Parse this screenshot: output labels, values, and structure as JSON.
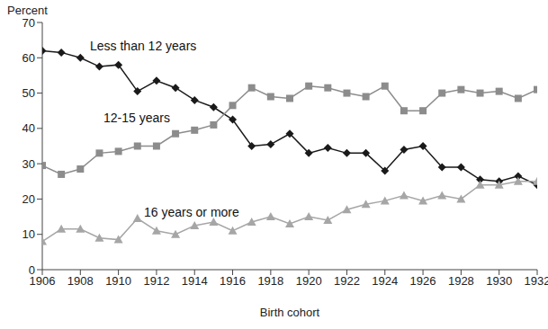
{
  "chart_data": {
    "type": "line",
    "x_label": "Birth cohort",
    "y_label": "Percent",
    "x": [
      1906,
      1907,
      1908,
      1909,
      1910,
      1911,
      1912,
      1913,
      1914,
      1915,
      1916,
      1917,
      1918,
      1919,
      1920,
      1921,
      1922,
      1923,
      1924,
      1925,
      1926,
      1927,
      1928,
      1929,
      1930,
      1931,
      1932
    ],
    "series": [
      {
        "name": "Less than 12 years",
        "color": "#1a1a1a",
        "marker": "diamond",
        "values": [
          62,
          61.5,
          60,
          57.5,
          58,
          50.5,
          53.5,
          51.5,
          48,
          46,
          42.5,
          35,
          35.5,
          38.5,
          33,
          34.5,
          33,
          33,
          28,
          34,
          35,
          29,
          29,
          25.5,
          25,
          26.5,
          24
        ]
      },
      {
        "name": "12-15 years",
        "color": "#8c8c8c",
        "marker": "square",
        "values": [
          29.5,
          27,
          28.5,
          33,
          33.5,
          35,
          35,
          38.5,
          39.5,
          41,
          46.5,
          51.5,
          49,
          48.5,
          52,
          51.5,
          50,
          49,
          52,
          45,
          45,
          50,
          51,
          50,
          50.5,
          48.5,
          51
        ]
      },
      {
        "name": "16 years or more",
        "color": "#a6a6a6",
        "marker": "triangle",
        "values": [
          8,
          11.5,
          11.5,
          9,
          8.5,
          14.5,
          11,
          10,
          12.5,
          13.5,
          11,
          13.5,
          15,
          13,
          15,
          14,
          17,
          18.5,
          19.5,
          21,
          19.5,
          21,
          20,
          24,
          24,
          25,
          25
        ]
      }
    ],
    "xlim": [
      1906,
      1932
    ],
    "xticks": [
      1906,
      1908,
      1910,
      1912,
      1914,
      1916,
      1918,
      1920,
      1922,
      1924,
      1926,
      1928,
      1930,
      1932
    ],
    "ylim": [
      0,
      70
    ],
    "yticks": [
      0,
      10,
      20,
      30,
      40,
      50,
      60,
      70
    ],
    "grid": false
  }
}
